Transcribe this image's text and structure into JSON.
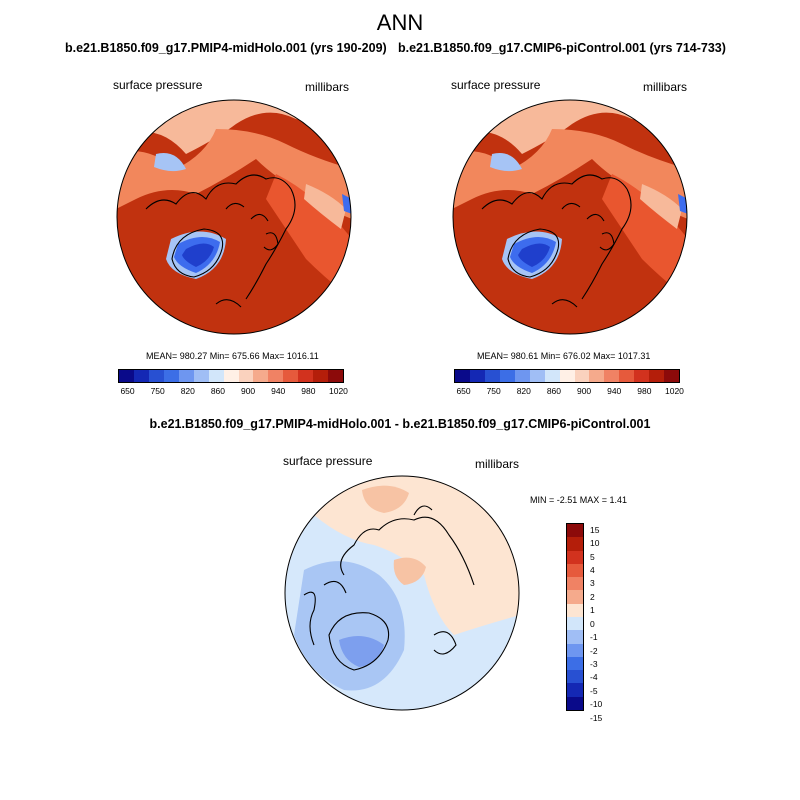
{
  "title": "ANN",
  "left_panel": {
    "case": "b.e21.B1850.f09_g17.PMIP4-midHolo.001 (yrs 190-209)",
    "variable": "surface pressure",
    "units": "millibars",
    "stats": "MEAN= 980.27  Min= 675.66  Max= 1016.11"
  },
  "right_panel": {
    "case": "b.e21.B1850.f09_g17.CMIP6-piControl.001 (yrs 714-733)",
    "variable": "surface pressure",
    "units": "millibars",
    "stats": "MEAN= 980.61  Min= 676.02  Max= 1017.31"
  },
  "diff_panel": {
    "title": "b.e21.B1850.f09_g17.PMIP4-midHolo.001 - b.e21.B1850.f09_g17.CMIP6-piControl.001",
    "variable": "surface pressure",
    "units": "millibars",
    "stats": "MIN =  -2.51 MAX =   1.41"
  },
  "abs_colorbar": {
    "colors": [
      "#0a0a8a",
      "#1428b4",
      "#2850d2",
      "#3c6ee6",
      "#6e96f0",
      "#a0bef5",
      "#d2e6fa",
      "#fff0e6",
      "#fad2be",
      "#f5aa8c",
      "#f08264",
      "#e65a3c",
      "#d2321e",
      "#b41e0a",
      "#8c0a0a"
    ],
    "tick_labels": [
      "650",
      "750",
      "820",
      "860",
      "900",
      "940",
      "980",
      "1020"
    ]
  },
  "diff_colorbar": {
    "colors": [
      "#8c0a0a",
      "#b41e0a",
      "#d2321e",
      "#e65a3c",
      "#f08264",
      "#f5aa8c",
      "#fde5d2",
      "#d2e6fa",
      "#a0bef5",
      "#6e96f0",
      "#3c6ee6",
      "#2850d2",
      "#1428b4",
      "#0a0a8a"
    ],
    "tick_labels": [
      "15",
      "10",
      "5",
      "4",
      "3",
      "2",
      "1",
      "0",
      "-1",
      "-2",
      "-3",
      "-4",
      "-5",
      "-10",
      "-15"
    ]
  },
  "map_colors": {
    "ocean": "#c1320f",
    "land_high": "#e9562f",
    "land_mid": "#f2875c",
    "land_low": "#f7b99a",
    "ice_deep": "#1f3fcc",
    "ice_mid": "#3d6cee",
    "ice_light": "#a6c4f5",
    "diff_pos": "#fde5d2",
    "diff_pos2": "#f7c3a4",
    "diff_neg1": "#d6e8fb",
    "diff_neg2": "#a9c6f4",
    "diff_neg3": "#7d9fee"
  }
}
